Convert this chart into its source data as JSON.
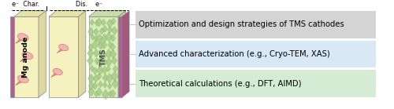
{
  "bg_color": "#ffffff",
  "fig_width": 5.0,
  "fig_height": 1.39,
  "dpi": 100,
  "anode_label": "Mg anode",
  "tms_label": "TMS",
  "boxes": [
    {
      "text": "Optimization and design strategies of TMS cathodes",
      "bg": "#d4d4d4",
      "text_color": "#000000"
    },
    {
      "text": "Advanced characterization (e.g., Cryo-TEM, XAS)",
      "bg": "#d8e8f4",
      "text_color": "#000000"
    },
    {
      "text": "Theoretical calculations (e.g., DFT, AIMD)",
      "bg": "#d4ecd4",
      "text_color": "#000000"
    }
  ],
  "text_fontsize": 7.2,
  "small_fontsize": 5.8,
  "label_fontsize": 6.8
}
